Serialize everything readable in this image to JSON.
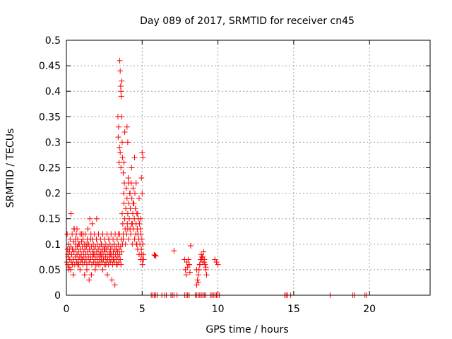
{
  "chart_data": {
    "type": "scatter",
    "title": "Day 089 of 2017, SRMTID for receiver cn45",
    "xlabel": "GPS time / hours",
    "ylabel": "SRMTID / TECUs",
    "xlim": [
      0,
      24
    ],
    "ylim": [
      0,
      0.5
    ],
    "xticks": [
      0,
      5,
      10,
      15,
      20
    ],
    "xtick_labels": [
      "0",
      "5",
      "10",
      "15",
      "20"
    ],
    "yticks": [
      0,
      0.05,
      0.1,
      0.15,
      0.2,
      0.25,
      0.3,
      0.35,
      0.4,
      0.45,
      0.5
    ],
    "ytick_labels": [
      "0",
      "0.05",
      "0.1",
      "0.15",
      "0.2",
      "0.25",
      "0.3",
      "0.35",
      "0.4",
      "0.45",
      "0.5"
    ],
    "grid": true,
    "marker": "+",
    "color": "#ff0000",
    "series": [
      {
        "name": "SRMTID",
        "x": [
          0.02,
          0.05,
          0.08,
          0.1,
          0.12,
          0.15,
          0.18,
          0.2,
          0.22,
          0.25,
          0.28,
          0.3,
          0.33,
          0.35,
          0.38,
          0.4,
          0.42,
          0.45,
          0.48,
          0.5,
          0.52,
          0.55,
          0.58,
          0.6,
          0.62,
          0.65,
          0.68,
          0.7,
          0.72,
          0.75,
          0.78,
          0.8,
          0.82,
          0.85,
          0.88,
          0.9,
          0.92,
          0.95,
          0.98,
          1.0,
          1.02,
          1.05,
          1.08,
          1.1,
          1.12,
          1.15,
          1.18,
          1.2,
          1.22,
          1.25,
          1.28,
          1.3,
          1.32,
          1.35,
          1.38,
          1.4,
          1.42,
          1.45,
          1.48,
          1.5,
          1.52,
          1.55,
          1.58,
          1.6,
          1.62,
          1.65,
          1.68,
          1.7,
          1.72,
          1.75,
          1.78,
          1.8,
          1.82,
          1.85,
          1.88,
          1.9,
          1.92,
          1.95,
          1.98,
          2.0,
          2.02,
          2.05,
          2.08,
          2.1,
          2.12,
          2.15,
          2.18,
          2.2,
          2.22,
          2.25,
          2.28,
          2.3,
          2.32,
          2.35,
          2.38,
          2.4,
          2.42,
          2.45,
          2.48,
          2.5,
          2.52,
          2.55,
          2.58,
          2.6,
          2.62,
          2.65,
          2.68,
          2.7,
          2.72,
          2.75,
          2.78,
          2.8,
          2.82,
          2.85,
          2.88,
          2.9,
          2.92,
          2.95,
          2.98,
          3.0,
          3.02,
          3.05,
          3.08,
          3.1,
          3.12,
          3.15,
          3.18,
          3.2,
          3.22,
          3.25,
          3.28,
          3.3,
          3.32,
          3.35,
          3.38,
          3.4,
          3.42,
          3.45,
          3.48,
          3.5,
          3.52,
          3.55,
          3.58,
          3.6,
          3.62,
          3.65,
          3.68,
          3.7,
          3.72,
          3.75,
          3.78,
          3.8,
          3.82,
          3.85,
          3.88,
          3.9,
          3.92,
          3.95,
          3.98,
          4.0,
          4.02,
          4.05,
          4.08,
          4.1,
          4.12,
          4.15,
          4.18,
          4.2,
          4.22,
          4.25,
          4.28,
          4.3,
          4.32,
          4.35,
          4.38,
          4.4,
          4.42,
          4.45,
          4.48,
          4.5,
          4.52,
          4.55,
          4.58,
          4.6,
          4.62,
          4.65,
          4.68,
          4.7,
          4.72,
          4.75,
          4.78,
          4.8,
          4.82,
          4.85,
          4.88,
          4.9,
          4.92,
          4.95,
          4.98,
          5.0,
          5.02,
          5.05,
          5.08,
          5.1,
          3.3,
          3.35,
          3.4,
          3.42,
          3.45,
          3.48,
          3.5,
          3.52,
          3.55,
          3.58,
          3.6,
          3.62,
          3.65,
          3.68,
          3.7,
          3.75,
          3.8,
          3.85,
          3.55,
          3.6,
          3.65,
          4.0,
          4.05,
          4.1,
          4.2,
          4.3,
          4.4,
          4.5,
          4.6,
          4.7,
          4.8,
          4.9,
          5.0,
          4.95,
          5.0,
          5.05,
          0.3,
          0.5,
          0.7,
          1.0,
          1.3,
          1.6,
          1.8,
          2.1,
          2.4,
          2.7,
          3.0,
          3.2,
          0.2,
          0.6,
          0.9,
          1.2,
          1.5,
          1.9,
          2.3,
          2.6,
          2.9,
          3.1,
          0.1,
          0.4,
          0.8,
          1.1,
          1.4,
          1.7,
          2.0,
          2.3,
          2.5,
          2.8,
          0.15,
          0.45,
          0.75,
          1.05,
          1.35,
          1.65,
          1.95,
          2.25,
          2.55,
          2.85,
          3.15,
          3.45,
          3.75,
          4.05,
          4.35,
          4.65,
          4.95,
          5.8,
          5.85,
          5.9,
          7.1,
          7.8,
          7.85,
          7.9,
          7.95,
          8.0,
          8.05,
          8.1,
          8.15,
          8.6,
          8.65,
          8.7,
          8.75,
          8.8,
          8.85,
          8.9,
          8.95,
          9.0,
          9.05,
          9.1,
          9.15,
          9.2,
          9.25,
          8.1,
          8.2,
          8.6,
          8.7,
          8.8,
          8.9,
          9.0,
          9.1,
          9.2,
          9.8,
          9.9,
          10.0,
          5.6,
          5.7,
          5.8,
          5.9,
          6.0,
          6.3,
          6.5,
          6.6,
          6.9,
          7.0,
          7.1,
          7.3,
          7.8,
          7.9,
          8.0,
          8.1,
          8.5,
          8.6,
          8.7,
          8.8,
          8.9,
          9.0,
          9.1,
          9.2,
          9.5,
          9.6,
          9.7,
          9.8,
          9.9,
          10.0,
          10.1,
          14.4,
          14.5,
          14.6,
          14.8,
          17.4,
          18.9,
          19.0,
          19.7,
          19.8
        ],
        "y": [
          0.065,
          0.12,
          0.09,
          0.06,
          0.075,
          0.1,
          0.055,
          0.085,
          0.07,
          0.11,
          0.05,
          0.095,
          0.065,
          0.08,
          0.12,
          0.06,
          0.09,
          0.07,
          0.105,
          0.085,
          0.13,
          0.06,
          0.075,
          0.1,
          0.09,
          0.12,
          0.065,
          0.08,
          0.095,
          0.11,
          0.07,
          0.085,
          0.06,
          0.1,
          0.075,
          0.12,
          0.09,
          0.065,
          0.08,
          0.105,
          0.07,
          0.095,
          0.06,
          0.11,
          0.085,
          0.075,
          0.1,
          0.065,
          0.09,
          0.12,
          0.08,
          0.07,
          0.095,
          0.06,
          0.11,
          0.085,
          0.13,
          0.075,
          0.1,
          0.065,
          0.09,
          0.15,
          0.08,
          0.07,
          0.12,
          0.095,
          0.06,
          0.085,
          0.11,
          0.075,
          0.1,
          0.065,
          0.09,
          0.12,
          0.08,
          0.07,
          0.095,
          0.06,
          0.11,
          0.085,
          0.075,
          0.1,
          0.065,
          0.09,
          0.12,
          0.08,
          0.07,
          0.095,
          0.06,
          0.11,
          0.085,
          0.075,
          0.1,
          0.065,
          0.09,
          0.12,
          0.08,
          0.07,
          0.095,
          0.06,
          0.11,
          0.085,
          0.075,
          0.1,
          0.065,
          0.09,
          0.12,
          0.08,
          0.07,
          0.095,
          0.06,
          0.11,
          0.085,
          0.075,
          0.1,
          0.065,
          0.09,
          0.12,
          0.08,
          0.07,
          0.095,
          0.06,
          0.11,
          0.085,
          0.075,
          0.1,
          0.065,
          0.09,
          0.12,
          0.08,
          0.07,
          0.095,
          0.06,
          0.11,
          0.085,
          0.075,
          0.1,
          0.065,
          0.09,
          0.12,
          0.08,
          0.07,
          0.095,
          0.06,
          0.11,
          0.085,
          0.16,
          0.1,
          0.14,
          0.12,
          0.2,
          0.18,
          0.22,
          0.15,
          0.13,
          0.1,
          0.17,
          0.21,
          0.12,
          0.19,
          0.14,
          0.16,
          0.23,
          0.11,
          0.18,
          0.15,
          0.2,
          0.13,
          0.17,
          0.12,
          0.22,
          0.14,
          0.19,
          0.1,
          0.16,
          0.21,
          0.13,
          0.18,
          0.15,
          0.11,
          0.2,
          0.17,
          0.12,
          0.14,
          0.1,
          0.16,
          0.13,
          0.09,
          0.12,
          0.15,
          0.11,
          0.08,
          0.14,
          0.1,
          0.13,
          0.07,
          0.12,
          0.09,
          0.11,
          0.07,
          0.06,
          0.1,
          0.08,
          0.07,
          0.09,
          0.06,
          0.35,
          0.31,
          0.33,
          0.26,
          0.29,
          0.46,
          0.44,
          0.41,
          0.4,
          0.39,
          0.35,
          0.3,
          0.27,
          0.24,
          0.26,
          0.32,
          0.28,
          0.25,
          0.42,
          0.33,
          0.3,
          0.22,
          0.2,
          0.25,
          0.18,
          0.27,
          0.22,
          0.16,
          0.19,
          0.15,
          0.2,
          0.23,
          0.28,
          0.27,
          0.16,
          0.13,
          0.13,
          0.12,
          0.1,
          0.11,
          0.08,
          0.06,
          0.05,
          0.04,
          0.03,
          0.02,
          0.09,
          0.11,
          0.05,
          0.04,
          0.03,
          0.05,
          0.07,
          0.06,
          0.08,
          0.07,
          0.08,
          0.09,
          0.1,
          0.12,
          0.1,
          0.14,
          0.15,
          0.1,
          0.09,
          0.11,
          0.05,
          0.04,
          0.06,
          0.07,
          0.05,
          0.04,
          0.06,
          0.08,
          0.09,
          0.07,
          0.1,
          0.12,
          0.11,
          0.13,
          0.14,
          0.1,
          0.08,
          0.079,
          0.078,
          0.077,
          0.087,
          0.07,
          0.05,
          0.04,
          0.065,
          0.055,
          0.07,
          0.06,
          0.045,
          0.02,
          0.03,
          0.04,
          0.05,
          0.06,
          0.07,
          0.08,
          0.075,
          0.065,
          0.085,
          0.07,
          0.06,
          0.05,
          0.04,
          0.06,
          0.097,
          0.05,
          0.025,
          0.06,
          0.07,
          0.075,
          0.065,
          0.055,
          0.07,
          0.065,
          0.06,
          0.0,
          0.0,
          0.0,
          0.0,
          0.0,
          0.0,
          0.0,
          0.0,
          0.0,
          0.0,
          0.0,
          0.0,
          0.0,
          0.0,
          0.0,
          0.0,
          0.0,
          0.0,
          0.0,
          0.0,
          0.0,
          0.0,
          0.0,
          0.0,
          0.0,
          0.0,
          0.0,
          0.0,
          0.0,
          0.0,
          0.0,
          0.0,
          0.0,
          0.0,
          0.0,
          0.0,
          0.0,
          0.0,
          0.0,
          0.0
        ]
      }
    ]
  }
}
